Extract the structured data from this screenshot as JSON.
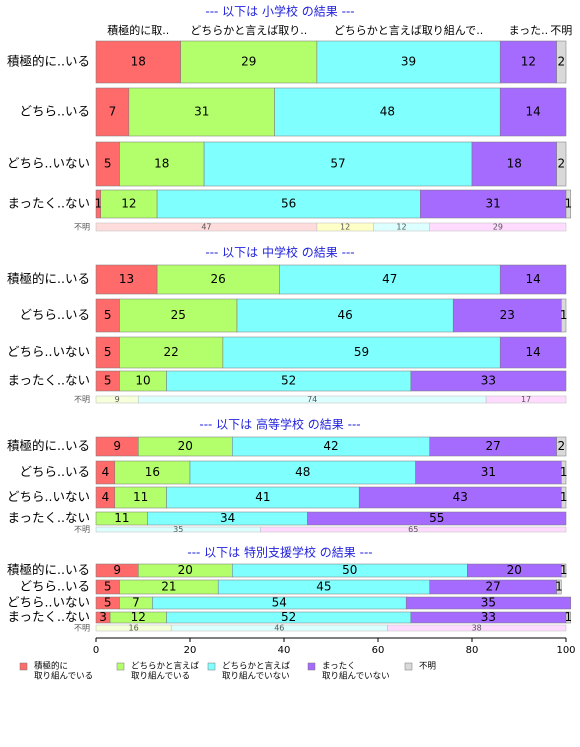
{
  "column_headers": [
    "積極的に取..",
    "どちらかと言えば取り..",
    "どちらかと言えば取り組んで..",
    "まった..",
    "不明"
  ],
  "x_axis": {
    "xlim": [
      0,
      100
    ],
    "xticks": [
      0,
      20,
      40,
      60,
      80,
      100
    ]
  },
  "legend": [
    {
      "lines": [
        "積極的に",
        "取り組んでいる"
      ],
      "color": "#ff6b6b"
    },
    {
      "lines": [
        "どちらかと言えば",
        "取り組んでいる"
      ],
      "color": "#b3ff6b"
    },
    {
      "lines": [
        "どちらかと言えば",
        "取り組んでいない"
      ],
      "color": "#80ffff"
    },
    {
      "lines": [
        "まったく",
        "取り組んでいない"
      ],
      "color": "#a56bff"
    },
    {
      "lines": [
        "不明"
      ],
      "color": "#d9d9d9"
    }
  ],
  "chart_data": [
    {
      "type": "bar",
      "title": "--- 以下は 小学校 の結果 ---",
      "categories": [
        "積極的に..いる",
        "どちら..いる",
        "どちら..いない",
        "まったく..ない"
      ],
      "series": [
        {
          "values": [
            18,
            7,
            5,
            1
          ]
        },
        {
          "values": [
            29,
            31,
            18,
            12
          ]
        },
        {
          "values": [
            39,
            48,
            57,
            56
          ]
        },
        {
          "values": [
            12,
            14,
            18,
            31
          ]
        },
        {
          "values": [
            2,
            null,
            2,
            1
          ]
        }
      ],
      "unknown": {
        "label": "不明",
        "values": [
          47,
          12,
          12,
          29
        ],
        "colors": [
          "#ffdcdc",
          "#ffffc8",
          "#dcffff",
          "#ffdcff"
        ]
      }
    },
    {
      "type": "bar",
      "title": "--- 以下は 中学校 の結果 ---",
      "categories": [
        "積極的に..いる",
        "どちら..いる",
        "どちら..いない",
        "まったく..ない"
      ],
      "series": [
        {
          "values": [
            13,
            5,
            5,
            5
          ]
        },
        {
          "values": [
            26,
            25,
            22,
            10
          ]
        },
        {
          "values": [
            47,
            46,
            59,
            52
          ]
        },
        {
          "values": [
            14,
            23,
            14,
            33
          ]
        },
        {
          "values": [
            null,
            1,
            null,
            null
          ]
        }
      ],
      "unknown": {
        "label": "不明",
        "values": [
          9,
          74,
          17
        ],
        "colors": [
          "#f5ffd9",
          "#dcffff",
          "#ffdcff"
        ]
      }
    },
    {
      "type": "bar",
      "title": "--- 以下は 高等学校 の結果 ---",
      "categories": [
        "積極的に..いる",
        "どちら..いる",
        "どちら..いない",
        "まったく..ない"
      ],
      "series": [
        {
          "values": [
            9,
            4,
            4,
            null
          ]
        },
        {
          "values": [
            20,
            16,
            11,
            11
          ]
        },
        {
          "values": [
            42,
            48,
            41,
            34
          ]
        },
        {
          "values": [
            27,
            31,
            43,
            55
          ]
        },
        {
          "values": [
            2,
            1,
            1,
            null
          ]
        }
      ],
      "unknown": {
        "label": "不明",
        "values": [
          35,
          65
        ],
        "colors": [
          "#dcffff",
          "#ffdcff"
        ]
      }
    },
    {
      "type": "bar",
      "title": "--- 以下は 特別支援学校 の結果 ---",
      "categories": [
        "積極的に..いる",
        "どちら..いる",
        "どちら..いない",
        "まったく..ない"
      ],
      "series": [
        {
          "values": [
            9,
            5,
            5,
            3
          ]
        },
        {
          "values": [
            20,
            21,
            7,
            12
          ]
        },
        {
          "values": [
            50,
            45,
            54,
            52
          ]
        },
        {
          "values": [
            20,
            27,
            35,
            33
          ]
        },
        {
          "values": [
            1,
            1,
            null,
            1
          ]
        }
      ],
      "unknown": {
        "label": "不明",
        "values": [
          16,
          46,
          38
        ],
        "colors": [
          "#f5ffd9",
          "#dcffff",
          "#ffdcff"
        ]
      }
    }
  ]
}
